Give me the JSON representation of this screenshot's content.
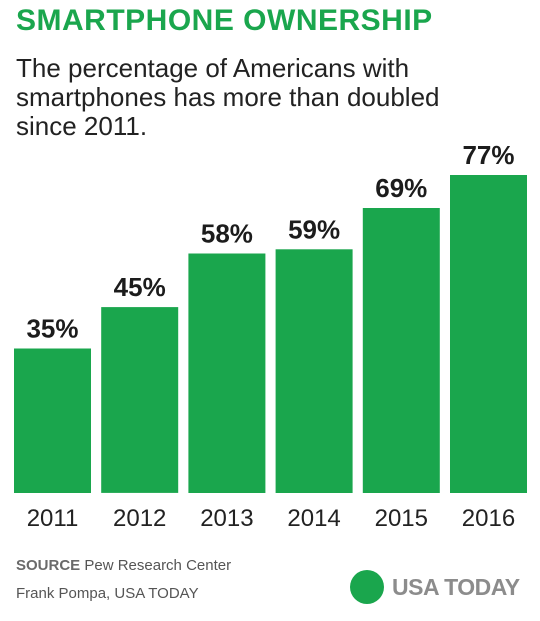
{
  "header": {
    "title": "SMARTPHONE OWNERSHIP",
    "subtitle": "The percentage of Americans with smartphones has more than doubled since 2011."
  },
  "chart_data": {
    "type": "bar",
    "categories": [
      "2011",
      "2012",
      "2013",
      "2014",
      "2015",
      "2016"
    ],
    "values": [
      35,
      45,
      58,
      59,
      69,
      77
    ],
    "value_labels": [
      "35%",
      "45%",
      "58%",
      "59%",
      "69%",
      "77%"
    ],
    "ylim": [
      0,
      100
    ],
    "bar_color": "#1aa64d",
    "grid": false,
    "legend": "none"
  },
  "footer": {
    "source_key": "SOURCE",
    "source_text": "Pew Research Center",
    "credit": "Frank Pompa, USA TODAY",
    "brand": "USA TODAY"
  },
  "colors": {
    "accent": "#1aa64d",
    "text": "#222222",
    "brand_gray": "#8c8c8c"
  }
}
